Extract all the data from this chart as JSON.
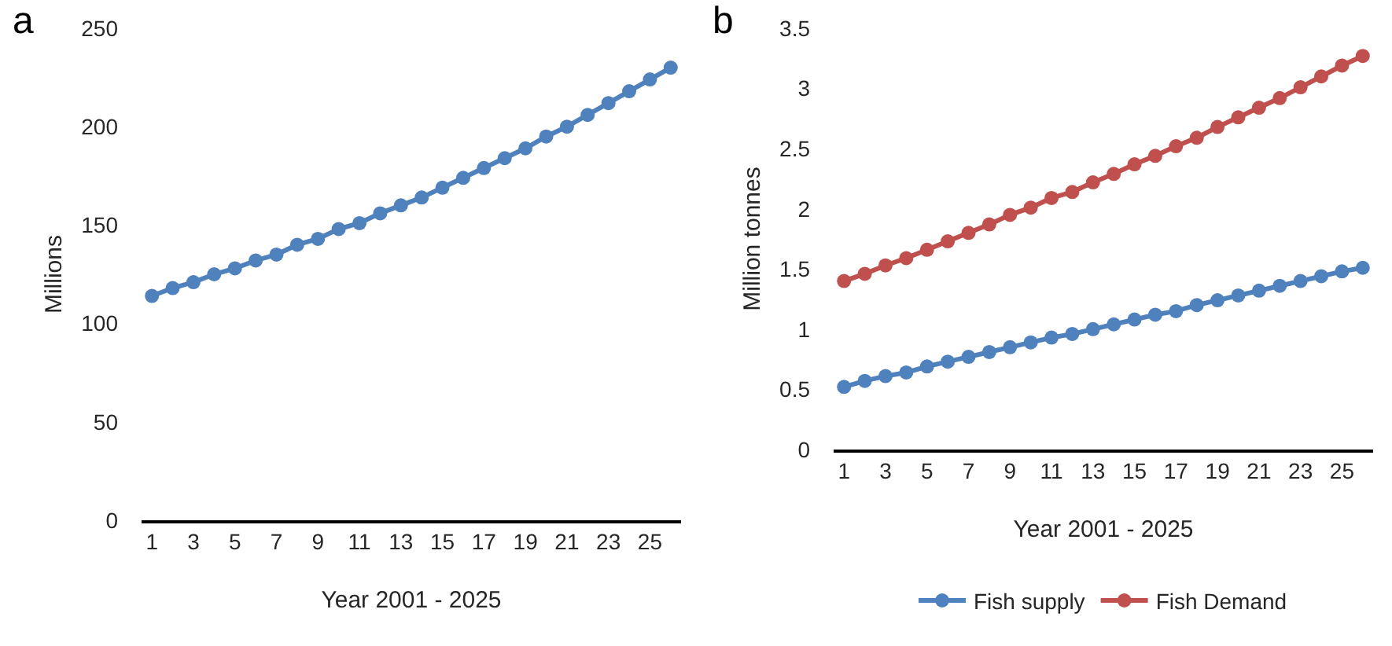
{
  "chart_data": [
    {
      "type": "line",
      "title": "a",
      "xlabel": "Year 2001 - 2025",
      "ylabel": "Millions",
      "x": [
        1,
        2,
        3,
        4,
        5,
        6,
        7,
        8,
        9,
        10,
        11,
        12,
        13,
        14,
        15,
        16,
        17,
        18,
        19,
        20,
        21,
        22,
        23,
        24,
        25,
        26
      ],
      "series": [
        {
          "color": "#4f81bd",
          "values": [
            114,
            118,
            121,
            125,
            128,
            132,
            135,
            140,
            143,
            148,
            151,
            156,
            160,
            164,
            169,
            174,
            179,
            184,
            189,
            195,
            200,
            206,
            212,
            218,
            224,
            230
          ]
        }
      ],
      "xlim": [
        0.5,
        26.5
      ],
      "xticks": [
        1,
        3,
        5,
        7,
        9,
        11,
        13,
        15,
        17,
        19,
        21,
        23,
        25
      ],
      "ylim": [
        0,
        250
      ],
      "yticks": [
        0,
        50,
        100,
        150,
        200,
        250
      ],
      "grid": false,
      "legend": false,
      "marker": "circle",
      "line_style": "solid"
    },
    {
      "type": "line",
      "title": "b",
      "xlabel": "Year 2001 - 2025",
      "ylabel": "Million tonnes",
      "x": [
        1,
        2,
        3,
        4,
        5,
        6,
        7,
        8,
        9,
        10,
        11,
        12,
        13,
        14,
        15,
        16,
        17,
        18,
        19,
        20,
        21,
        22,
        23,
        24,
        25,
        26
      ],
      "series": [
        {
          "name": "Fish supply",
          "color": "#4f81bd",
          "values": [
            0.52,
            0.57,
            0.61,
            0.64,
            0.69,
            0.73,
            0.77,
            0.81,
            0.85,
            0.89,
            0.93,
            0.96,
            1.0,
            1.04,
            1.08,
            1.12,
            1.15,
            1.2,
            1.24,
            1.28,
            1.32,
            1.36,
            1.4,
            1.44,
            1.48,
            1.51
          ]
        },
        {
          "name": "Fish Demand",
          "color": "#c0504d",
          "values": [
            1.4,
            1.46,
            1.53,
            1.59,
            1.66,
            1.73,
            1.8,
            1.87,
            1.95,
            2.01,
            2.09,
            2.14,
            2.22,
            2.29,
            2.37,
            2.44,
            2.52,
            2.59,
            2.68,
            2.76,
            2.84,
            2.92,
            3.01,
            3.1,
            3.19,
            3.27
          ]
        }
      ],
      "xlim": [
        0.5,
        26.5
      ],
      "xticks": [
        1,
        3,
        5,
        7,
        9,
        11,
        13,
        15,
        17,
        19,
        21,
        23,
        25
      ],
      "ylim": [
        0,
        3.5
      ],
      "yticks": [
        0,
        0.5,
        1,
        1.5,
        2,
        2.5,
        3,
        3.5
      ],
      "grid": false,
      "legend": "bottom",
      "marker": "circle",
      "line_style": "solid"
    }
  ]
}
